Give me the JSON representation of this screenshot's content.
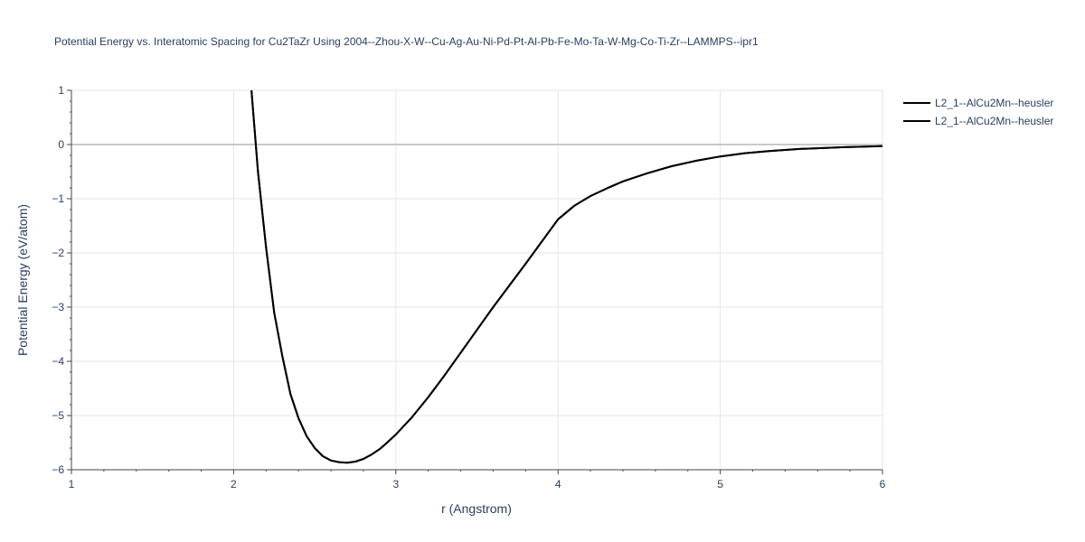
{
  "chart_data": {
    "type": "line",
    "title": "Potential Energy vs. Interatomic Spacing for Cu2TaZr Using 2004--Zhou-X-W--Cu-Ag-Au-Ni-Pd-Pt-Al-Pb-Fe-Mo-Ta-W-Mg-Co-Ti-Zr--LAMMPS--ipr1",
    "xlabel": "r (Angstrom)",
    "ylabel": "Potential Energy (eV/atom)",
    "xlim": [
      1,
      6
    ],
    "ylim": [
      -6,
      1
    ],
    "x_ticks": [
      1,
      2,
      3,
      4,
      5,
      6
    ],
    "x_tick_labels": [
      "1",
      "2",
      "3",
      "4",
      "5",
      "6"
    ],
    "y_ticks": [
      1,
      0,
      -1,
      -2,
      -3,
      -4,
      -5,
      -6
    ],
    "y_tick_labels": [
      "1",
      "0",
      "−1",
      "−2",
      "−3",
      "−4",
      "−5",
      "−6"
    ],
    "grid": true,
    "legend_position": "top-right",
    "line_color": "#000000",
    "grid_color": "#e6e6e6",
    "zero_line_color": "#c8c8c8",
    "series": [
      {
        "name": "L2_1--AlCu2Mn--heusler",
        "x": [
          2.11,
          2.15,
          2.2,
          2.25,
          2.3,
          2.35,
          2.4,
          2.45,
          2.5,
          2.55,
          2.6,
          2.65,
          2.7,
          2.75,
          2.8,
          2.85,
          2.9,
          2.95,
          3.0,
          3.1,
          3.2,
          3.3,
          3.4,
          3.5,
          3.6,
          3.7,
          3.8,
          3.9,
          4.0,
          4.1,
          4.2,
          4.3,
          4.4,
          4.55,
          4.7,
          4.85,
          5.0,
          5.15,
          5.3,
          5.5,
          5.75,
          6.0
        ],
        "y": [
          1.0,
          -0.5,
          -1.9,
          -3.1,
          -3.9,
          -4.6,
          -5.05,
          -5.38,
          -5.6,
          -5.75,
          -5.83,
          -5.86,
          -5.87,
          -5.85,
          -5.8,
          -5.72,
          -5.62,
          -5.49,
          -5.35,
          -5.03,
          -4.66,
          -4.26,
          -3.84,
          -3.42,
          -3.0,
          -2.6,
          -2.2,
          -1.79,
          -1.38,
          -1.13,
          -0.95,
          -0.81,
          -0.68,
          -0.53,
          -0.4,
          -0.3,
          -0.22,
          -0.16,
          -0.12,
          -0.08,
          -0.05,
          -0.03
        ]
      },
      {
        "name": "L2_1--AlCu2Mn--heusler",
        "x": [
          2.11,
          2.15,
          2.2,
          2.25,
          2.3,
          2.35,
          2.4,
          2.45,
          2.5,
          2.55,
          2.6,
          2.65,
          2.7,
          2.75,
          2.8,
          2.85,
          2.9,
          2.95,
          3.0,
          3.1,
          3.2,
          3.3,
          3.4,
          3.5,
          3.6,
          3.7,
          3.8,
          3.9,
          4.0,
          4.1,
          4.2,
          4.3,
          4.4,
          4.55,
          4.7,
          4.85,
          5.0,
          5.15,
          5.3,
          5.5,
          5.75,
          6.0
        ],
        "y": [
          1.0,
          -0.5,
          -1.9,
          -3.1,
          -3.9,
          -4.6,
          -5.05,
          -5.38,
          -5.6,
          -5.75,
          -5.83,
          -5.86,
          -5.87,
          -5.85,
          -5.8,
          -5.72,
          -5.62,
          -5.49,
          -5.35,
          -5.03,
          -4.66,
          -4.26,
          -3.84,
          -3.42,
          -3.0,
          -2.6,
          -2.2,
          -1.79,
          -1.38,
          -1.13,
          -0.95,
          -0.81,
          -0.68,
          -0.53,
          -0.4,
          -0.3,
          -0.22,
          -0.16,
          -0.12,
          -0.08,
          -0.05,
          -0.03
        ]
      }
    ]
  }
}
